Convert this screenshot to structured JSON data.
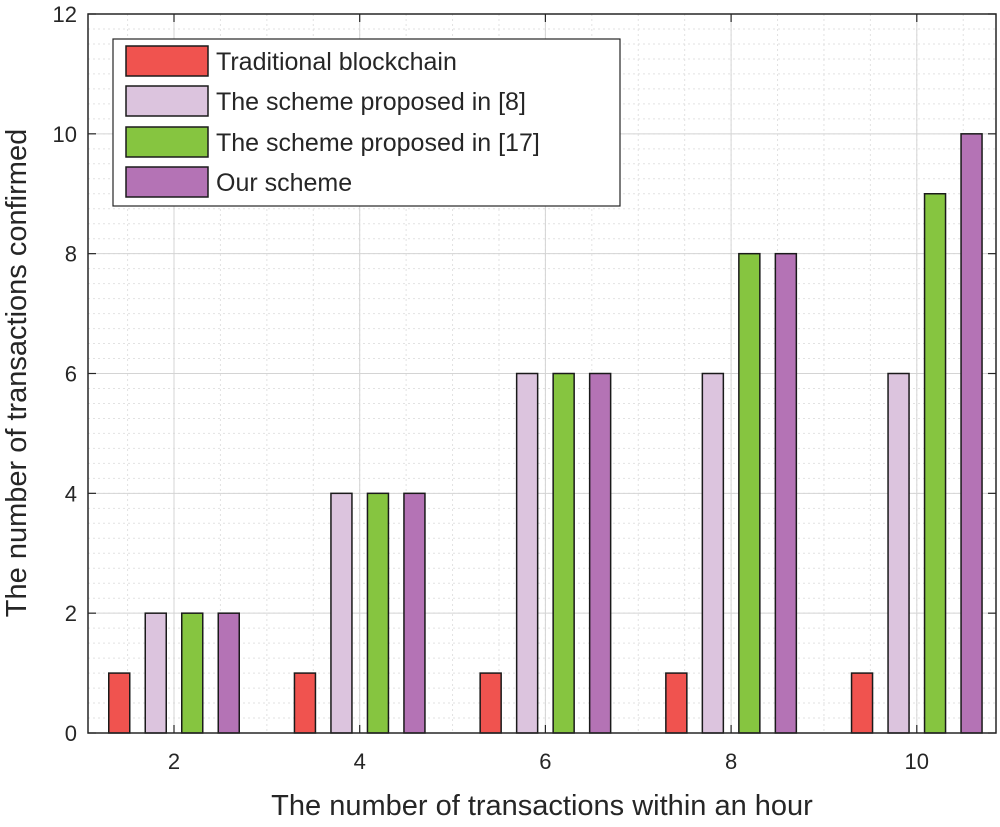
{
  "chart_data": {
    "type": "bar",
    "categories": [
      "2",
      "4",
      "6",
      "8",
      "10"
    ],
    "series": [
      {
        "name": "Traditional blockchain",
        "color": "#f0534f",
        "values": [
          1,
          1,
          1,
          1,
          1
        ]
      },
      {
        "name": "The scheme proposed in [8]",
        "color": "#dcc4de",
        "values": [
          2,
          4,
          6,
          6,
          6
        ]
      },
      {
        "name": "The scheme proposed in [17]",
        "color": "#86c540",
        "values": [
          2,
          4,
          6,
          8,
          9
        ]
      },
      {
        "name": "Our scheme",
        "color": "#b473b5",
        "values": [
          2,
          4,
          6,
          8,
          10
        ]
      }
    ],
    "xlabel": "The number of transactions within an hour",
    "ylabel": "The number of transactions confirmed",
    "ylim": [
      0,
      12
    ],
    "yticks": [
      "0",
      "2",
      "4",
      "6",
      "8",
      "10",
      "12"
    ],
    "grid": true,
    "legend_position": "top-left"
  }
}
